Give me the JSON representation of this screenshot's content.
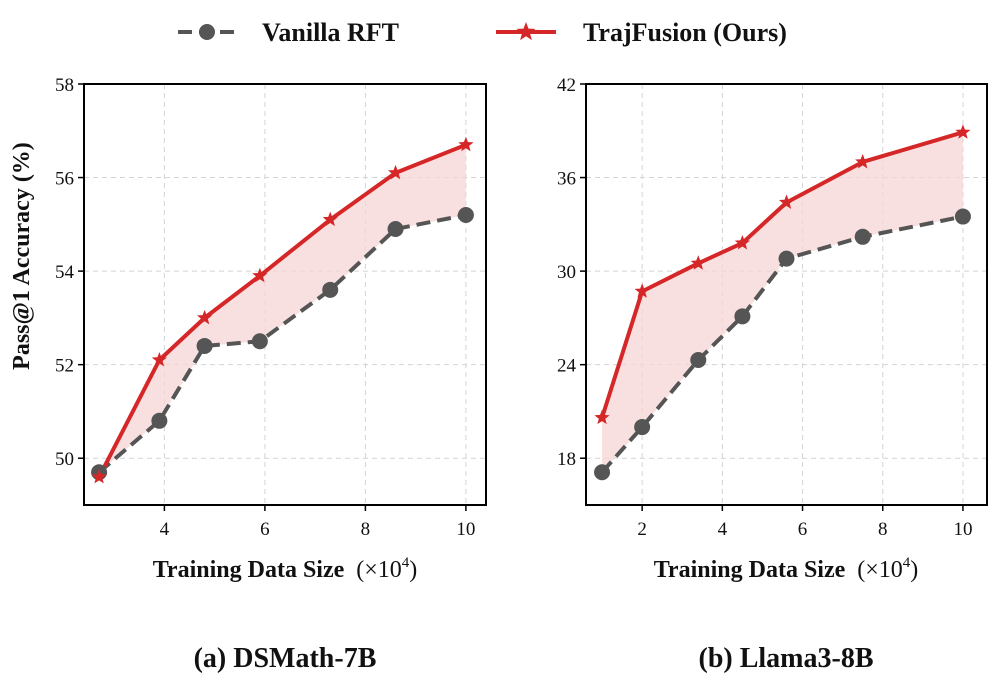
{
  "legend": {
    "items": [
      {
        "label": "Vanilla RFT",
        "color": "#555555",
        "marker": "circle",
        "dash": true
      },
      {
        "label": "TrajFusion (Ours)",
        "color": "#d62728",
        "marker": "star",
        "dash": false
      }
    ]
  },
  "colors": {
    "fill": "#f7d6d6",
    "vanilla": "#555555",
    "ours": "#d62728"
  },
  "chart_data": [
    {
      "type": "line",
      "caption": "(a) DSMath-7B",
      "xlabel": "Training Data Size",
      "xlabel_unit_prefix": "(×10",
      "xlabel_exp": "4",
      "xlabel_suffix": ")",
      "ylabel": "Pass@1 Accuracy (%)",
      "xlim": [
        2.4,
        10.4
      ],
      "ylim": [
        49.0,
        58.0
      ],
      "xticks": [
        4,
        6,
        8,
        10
      ],
      "yticks": [
        50,
        52,
        54,
        56,
        58
      ],
      "grid": true,
      "shaded_between_series": true,
      "series": [
        {
          "name": "Vanilla RFT",
          "x": [
            2.7,
            3.9,
            4.8,
            5.9,
            7.3,
            8.6,
            10.0
          ],
          "y": [
            49.7,
            50.8,
            52.4,
            52.5,
            53.6,
            54.9,
            55.2
          ]
        },
        {
          "name": "TrajFusion (Ours)",
          "x": [
            2.7,
            3.9,
            4.8,
            5.9,
            7.3,
            8.6,
            10.0
          ],
          "y": [
            49.6,
            52.1,
            53.0,
            53.9,
            55.1,
            56.1,
            56.7
          ]
        }
      ]
    },
    {
      "type": "line",
      "caption": "(b) Llama3-8B",
      "xlabel": "Training Data Size",
      "xlabel_unit_prefix": "(×10",
      "xlabel_exp": "4",
      "xlabel_suffix": ")",
      "ylabel": "",
      "xlim": [
        0.6,
        10.6
      ],
      "ylim": [
        15.0,
        42.0
      ],
      "xticks": [
        2,
        4,
        6,
        8,
        10
      ],
      "yticks": [
        18,
        24,
        30,
        36,
        42
      ],
      "grid": true,
      "shaded_between_series": true,
      "series": [
        {
          "name": "Vanilla RFT",
          "x": [
            1.0,
            2.0,
            3.4,
            4.5,
            5.6,
            7.5,
            10.0
          ],
          "y": [
            17.1,
            20.0,
            24.3,
            27.1,
            30.8,
            32.2,
            33.5
          ]
        },
        {
          "name": "TrajFusion (Ours)",
          "x": [
            1.0,
            2.0,
            3.4,
            4.5,
            5.6,
            7.5,
            10.0
          ],
          "y": [
            20.6,
            28.7,
            30.5,
            31.8,
            34.4,
            37.0,
            38.9
          ]
        }
      ]
    }
  ]
}
